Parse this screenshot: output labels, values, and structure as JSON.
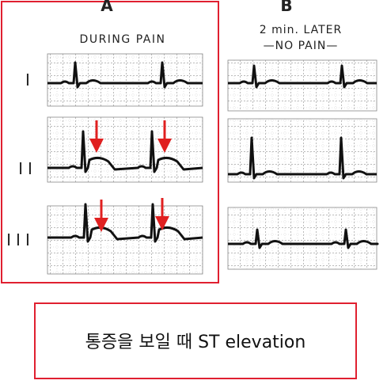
{
  "panel_a": {
    "label": "A",
    "subtitle": "DURING PAIN",
    "leads": [
      "I",
      "II",
      "III"
    ]
  },
  "panel_b": {
    "label": "B",
    "subtitle_lines": [
      "2 min. LATER",
      "—NO PAIN—"
    ]
  },
  "caption": "통증을 보일 때 ST elevation"
}
